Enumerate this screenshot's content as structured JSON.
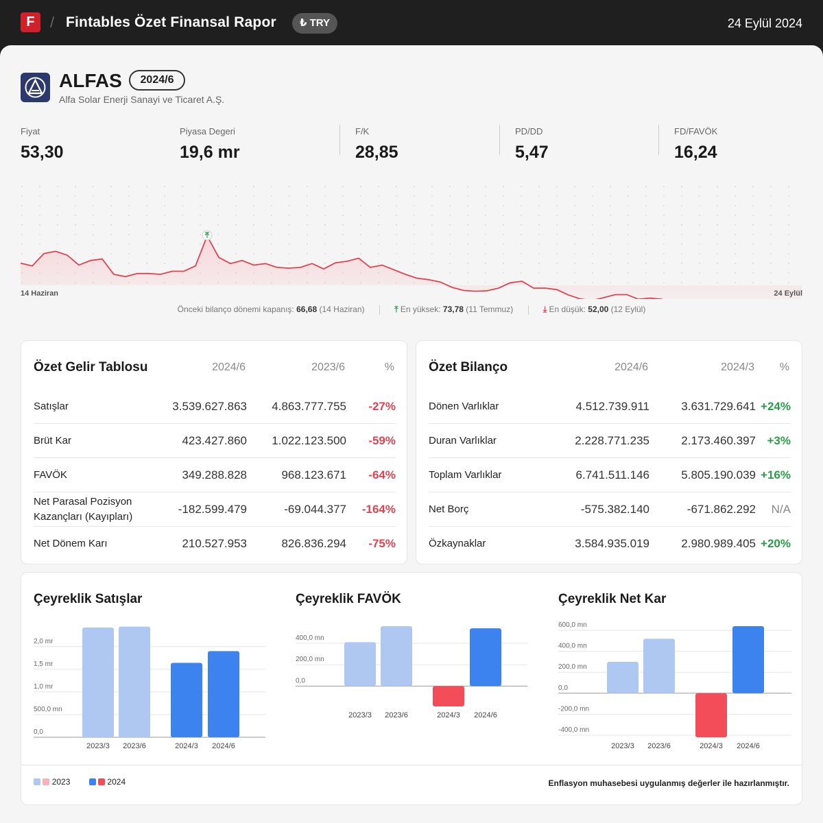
{
  "header": {
    "logo_letter": "F",
    "title": "Fintables Özet Finansal Rapor",
    "currency": "₺ TRY",
    "date": "24 Eylül 2024"
  },
  "company": {
    "ticker": "ALFAS",
    "period": "2024/6",
    "name": "Alfa Solar Enerji Sanayi ve Ticaret A.Ş."
  },
  "metrics": [
    {
      "label": "Fiyat",
      "value": "53,30"
    },
    {
      "label": "Piyasa Degeri",
      "value": "19,6 mr"
    },
    {
      "label": "F/K",
      "value": "28,85"
    },
    {
      "label": "PD/DD",
      "value": "5,47"
    },
    {
      "label": "FD/FAVÖK",
      "value": "16,24"
    }
  ],
  "price_chart": {
    "start_label": "14 Haziran",
    "end_label": "24 Eylül",
    "line_color": "#e04450",
    "values": [
      66.7,
      66.0,
      69.2,
      69.8,
      68.8,
      66.2,
      67.4,
      67.8,
      63.8,
      63.2,
      64.0,
      64.0,
      63.8,
      64.6,
      64.6,
      66.0,
      73.8,
      68.2,
      66.6,
      67.4,
      66.2,
      66.6,
      65.6,
      65.4,
      65.6,
      66.6,
      65.2,
      66.8,
      67.2,
      68.0,
      65.6,
      66.2,
      65.0,
      63.8,
      62.8,
      62.4,
      61.8,
      60.4,
      59.6,
      59.4,
      59.5,
      60.2,
      61.6,
      62.0,
      60.2,
      60.2,
      59.8,
      58.4,
      57.4,
      57.0,
      57.7,
      58.5,
      58.5,
      57.3,
      57.6,
      57.3,
      56.2,
      54.3,
      52.2,
      52.0,
      53.0,
      53.6,
      53.8,
      52.4,
      54.1,
      55.8,
      54.0,
      53.3
    ],
    "high_index": 16,
    "low_index": 59,
    "prev_close_label": "Önceki bilanço dönemi kapanış:",
    "prev_close_value": "66,68",
    "prev_close_date": "(14 Haziran)",
    "high_label": "En yüksek:",
    "high_value": "73,78",
    "high_date": "(11 Temmuz)",
    "low_label": "En düşük:",
    "low_value": "52,00",
    "low_date": "(12 Eylül)"
  },
  "income": {
    "title": "Özet Gelir Tablosu",
    "col1": "2024/6",
    "col2": "2023/6",
    "col3": "%",
    "rows": [
      {
        "name": "Satışlar",
        "v1": "3.539.627.863",
        "v2": "4.863.777.755",
        "pct": "-27%"
      },
      {
        "name": "Brüt Kar",
        "v1": "423.427.860",
        "v2": "1.022.123.500",
        "pct": "-59%"
      },
      {
        "name": "FAVÖK",
        "v1": "349.288.828",
        "v2": "968.123.671",
        "pct": "-64%"
      },
      {
        "name": "Net Parasal Pozisyon Kazançları (Kayıpları)",
        "v1": "-182.599.479",
        "v2": "-69.044.377",
        "pct": "-164%"
      },
      {
        "name": "Net Dönem Karı",
        "v1": "210.527.953",
        "v2": "826.836.294",
        "pct": "-75%"
      }
    ]
  },
  "balance": {
    "title": "Özet Bilanço",
    "col1": "2024/6",
    "col2": "2024/3",
    "col3": "%",
    "rows": [
      {
        "name": "Dönen Varlıklar",
        "v1": "4.512.739.911",
        "v2": "3.631.729.641",
        "pct": "+24%"
      },
      {
        "name": "Duran Varlıklar",
        "v1": "2.228.771.235",
        "v2": "2.173.460.397",
        "pct": "+3%"
      },
      {
        "name": "Toplam Varlıklar",
        "v1": "6.741.511.146",
        "v2": "5.805.190.039",
        "pct": "+16%"
      },
      {
        "name": "Net Borç",
        "v1": "-575.382.140",
        "v2": "-671.862.292",
        "pct": "N/A"
      },
      {
        "name": "Özkaynaklar",
        "v1": "3.584.935.019",
        "v2": "2.980.989.405",
        "pct": "+20%"
      }
    ]
  },
  "colors": {
    "light_blue": "#aec8f2",
    "blue": "#3d83f0",
    "light_red": "#f7b3b8",
    "red": "#f24d59"
  },
  "chart_data": [
    {
      "type": "bar",
      "title": "Çeyreklik Satışlar",
      "categories": [
        "2023/3",
        "2023/6",
        "2024/3",
        "2024/6"
      ],
      "values": [
        2.42,
        2.44,
        1.64,
        1.9
      ],
      "unit": "mr",
      "ylim": [
        0,
        2.45
      ],
      "ticks": [
        {
          "v": 0,
          "label": "0,0"
        },
        {
          "v": 0.5,
          "label": "500,0 mn"
        },
        {
          "v": 1.0,
          "label": "1,0 mr"
        },
        {
          "v": 1.5,
          "label": "1,5 mr"
        },
        {
          "v": 2.0,
          "label": "2,0 mr"
        }
      ]
    },
    {
      "type": "bar",
      "title": "Çeyreklik FAVÖK",
      "categories": [
        "2023/3",
        "2023/6",
        "2024/3",
        "2024/6"
      ],
      "values": [
        410,
        560,
        -190,
        540
      ],
      "unit": "mn",
      "ylim": [
        -190,
        560
      ],
      "ticks": [
        {
          "v": 0,
          "label": "0,0"
        },
        {
          "v": 200,
          "label": "200,0 mn"
        },
        {
          "v": 400,
          "label": "400,0 mn"
        }
      ]
    },
    {
      "type": "bar",
      "title": "Çeyreklik Net Kar",
      "categories": [
        "2023/3",
        "2023/6",
        "2024/3",
        "2024/6"
      ],
      "values": [
        300,
        520,
        -420,
        640
      ],
      "unit": "mn",
      "ylim": [
        -420,
        640
      ],
      "ticks": [
        {
          "v": -400,
          "label": "-400,0 mn"
        },
        {
          "v": -200,
          "label": "-200,0 mn"
        },
        {
          "v": 0,
          "label": "0,0"
        },
        {
          "v": 200,
          "label": "200,0 mn"
        },
        {
          "v": 400,
          "label": "400,0 mn"
        },
        {
          "v": 600,
          "label": "600,0 mn"
        }
      ]
    }
  ],
  "legend": {
    "y2023": "2023",
    "y2024": "2024",
    "note": "Enflasyon muhasebesi uygulanmış değerler ile hazırlanmıştır."
  }
}
